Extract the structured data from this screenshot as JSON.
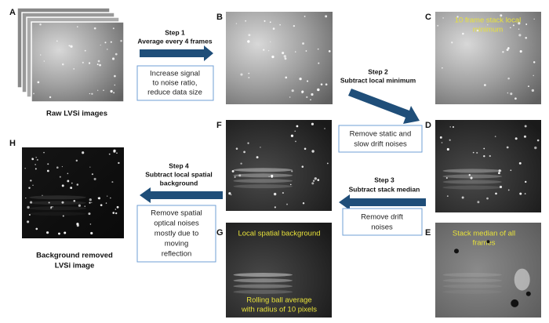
{
  "panels": {
    "a": "A",
    "b": "B",
    "c": "C",
    "d": "D",
    "e": "E",
    "f": "F",
    "g": "G",
    "h": "H"
  },
  "raw_caption": "Raw LVSi images",
  "step1": {
    "title": "Step 1",
    "action": "Average every 4 frames",
    "note": [
      "Increase signal",
      "to noise ratio,",
      "reduce data size"
    ]
  },
  "step2": {
    "title": "Step 2",
    "action": "Subtract local minimum",
    "note": [
      "Remove static and",
      "slow drift noises"
    ]
  },
  "step3": {
    "title": "Step 3",
    "action": "Subtract stack median",
    "note": [
      "Remove drift",
      "noises"
    ]
  },
  "step4": {
    "title": "Step 4",
    "action": [
      "Subtract local spatial",
      "background"
    ],
    "note": [
      "Remove spatial",
      "optical noises",
      "mostly due to",
      "moving",
      "reflection"
    ]
  },
  "overlays": {
    "c": [
      "10 frame stack local",
      "minimum"
    ],
    "e": [
      "Stack median of all",
      "frames"
    ],
    "g_top": "Local spatial background",
    "g_bottom": [
      "Rolling ball average",
      "with radius of 10 pixels"
    ]
  },
  "result_caption": [
    "Background removed",
    "LVSi image"
  ]
}
